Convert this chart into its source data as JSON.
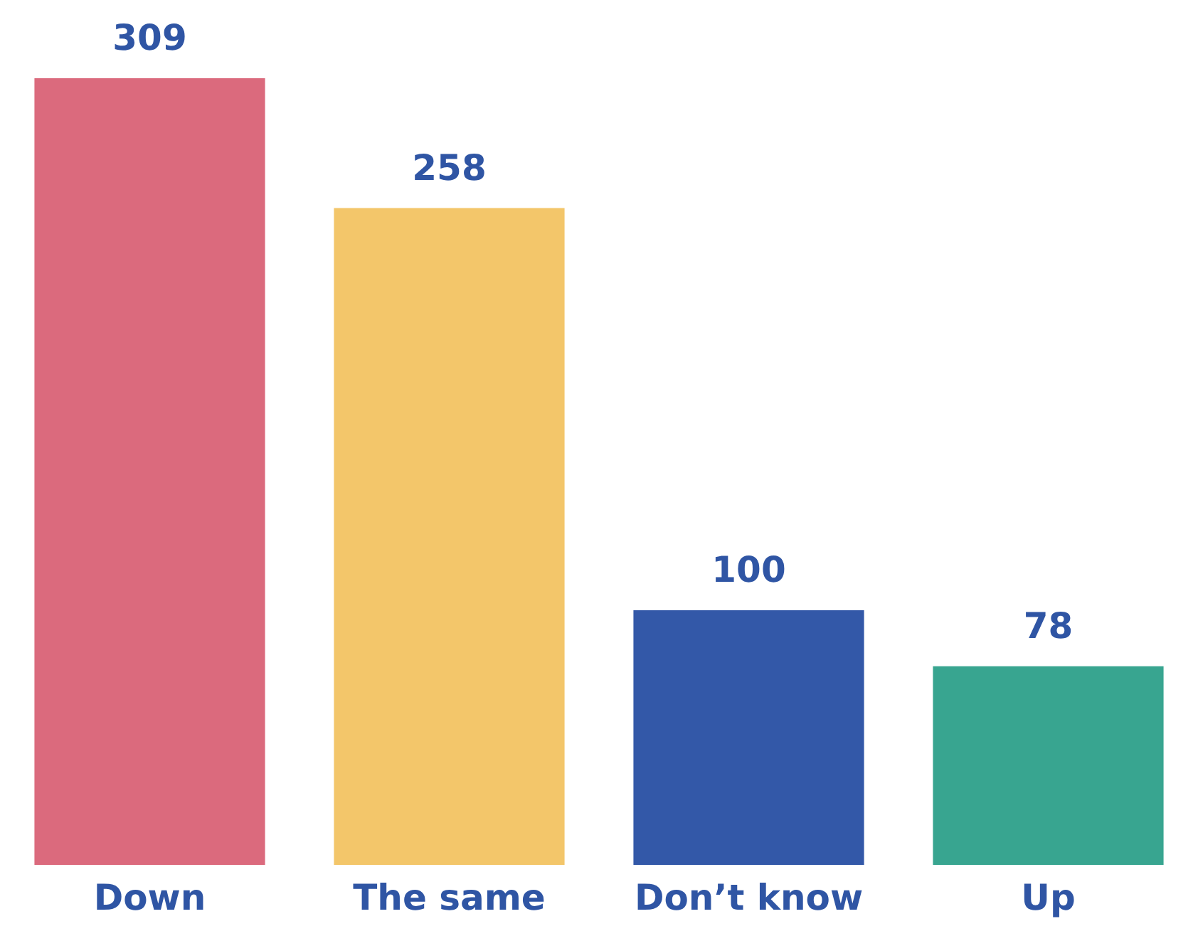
{
  "chart_data": {
    "type": "bar",
    "categories": [
      "Down",
      "The same",
      "Don’t know",
      "Up"
    ],
    "values": [
      309,
      258,
      100,
      78
    ],
    "colors": [
      "#db6a7d",
      "#f3c66a",
      "#3358a8",
      "#38a590"
    ],
    "data_labels": true,
    "grid": false,
    "legend": false,
    "tick_labels": "x"
  }
}
